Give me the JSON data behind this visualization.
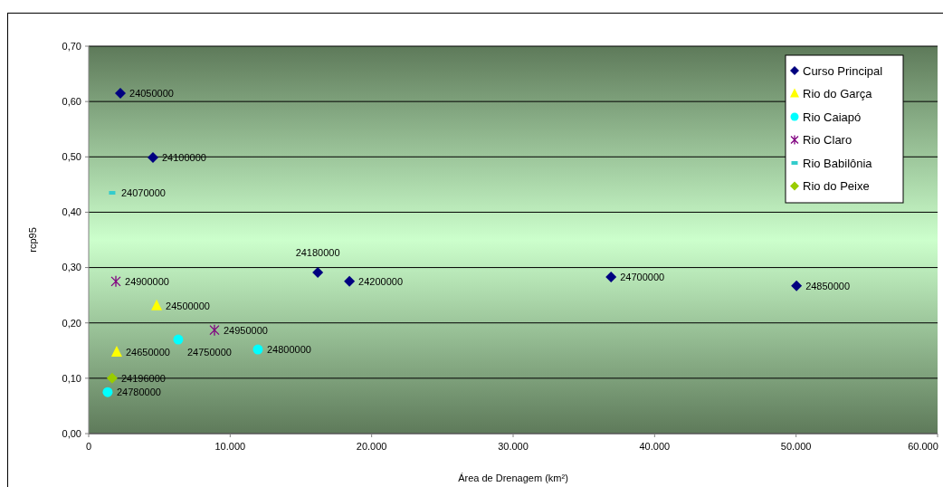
{
  "chart_data": {
    "type": "scatter",
    "xlabel": "Área de Drenagem (km²)",
    "ylabel": "rcp95",
    "xlim": [
      0,
      60000
    ],
    "xticks": [
      0,
      {
        "value": 10000,
        "label": "10.000"
      },
      {
        "value": 20000,
        "label": "20.000"
      },
      {
        "value": 30000,
        "label": "30.000"
      },
      {
        "value": 40000,
        "label": "40.000"
      },
      {
        "value": 50000,
        "label": "50.000"
      },
      {
        "value": 60000,
        "label": "60.000"
      }
    ],
    "ylim": [
      0,
      0.7
    ],
    "yticks": [
      {
        "value": 0,
        "label": "0,00"
      },
      {
        "value": 0.1,
        "label": "0,10"
      },
      {
        "value": 0.2,
        "label": "0,20"
      },
      {
        "value": 0.3,
        "label": "0,30"
      },
      {
        "value": 0.4,
        "label": "0,40"
      },
      {
        "value": 0.5,
        "label": "0,50"
      },
      {
        "value": 0.6,
        "label": "0,60"
      },
      {
        "value": 0.7,
        "label": "0,70"
      }
    ],
    "grid": "y",
    "legend": "top right",
    "series": [
      {
        "name": "Curso Principal",
        "color": "#000080",
        "marker": "diamond",
        "x": [
          2240,
          4540,
          16190,
          18430,
          36920,
          50030
        ],
        "values": [
          0.615,
          0.499,
          0.291,
          0.275,
          0.283,
          0.267
        ]
      },
      {
        "name": "Rio do Garça",
        "color": "#ffff00",
        "marker": "triangle",
        "x": [
          4800,
          1980
        ],
        "values": [
          0.231,
          0.147
        ]
      },
      {
        "name": "Rio Caiapó",
        "color": "#00ffff",
        "marker": "circle",
        "x": [
          6330,
          11960,
          1340
        ],
        "values": [
          0.17,
          0.152,
          0.075
        ]
      },
      {
        "name": "Rio Claro",
        "color": "#800080",
        "marker": "cross",
        "x": [
          1920,
          8890
        ],
        "values": [
          0.275,
          0.187
        ]
      },
      {
        "name": "Rio Babilônia",
        "color": "#33cccc",
        "marker": "square",
        "x": [
          1660
        ],
        "values": [
          0.435
        ]
      },
      {
        "name": "Rio do Peixe",
        "color": "#99cc00",
        "marker": "diamond",
        "x": [
          1660
        ],
        "values": [
          0.1
        ]
      }
    ],
    "annotations": [
      {
        "text": "24050000",
        "x": 2240,
        "y": 0.615
      },
      {
        "text": "24100000",
        "x": 4540,
        "y": 0.499
      },
      {
        "text": "24180000",
        "x": 16190,
        "y": 0.291
      },
      {
        "text": "24200000",
        "x": 18430,
        "y": 0.275
      },
      {
        "text": "24700000",
        "x": 36920,
        "y": 0.283
      },
      {
        "text": "24850000",
        "x": 50030,
        "y": 0.267
      },
      {
        "text": "24500000",
        "x": 4800,
        "y": 0.231
      },
      {
        "text": "24650000",
        "x": 1980,
        "y": 0.147
      },
      {
        "text": "24750000",
        "x": 6330,
        "y": 0.17
      },
      {
        "text": "24800000",
        "x": 11960,
        "y": 0.152
      },
      {
        "text": "24780000",
        "x": 1340,
        "y": 0.075
      },
      {
        "text": "24900000",
        "x": 1920,
        "y": 0.275
      },
      {
        "text": "24950000",
        "x": 8890,
        "y": 0.187
      },
      {
        "text": "24070000",
        "x": 1660,
        "y": 0.435
      },
      {
        "text": "24196000",
        "x": 1660,
        "y": 0.1
      }
    ]
  }
}
